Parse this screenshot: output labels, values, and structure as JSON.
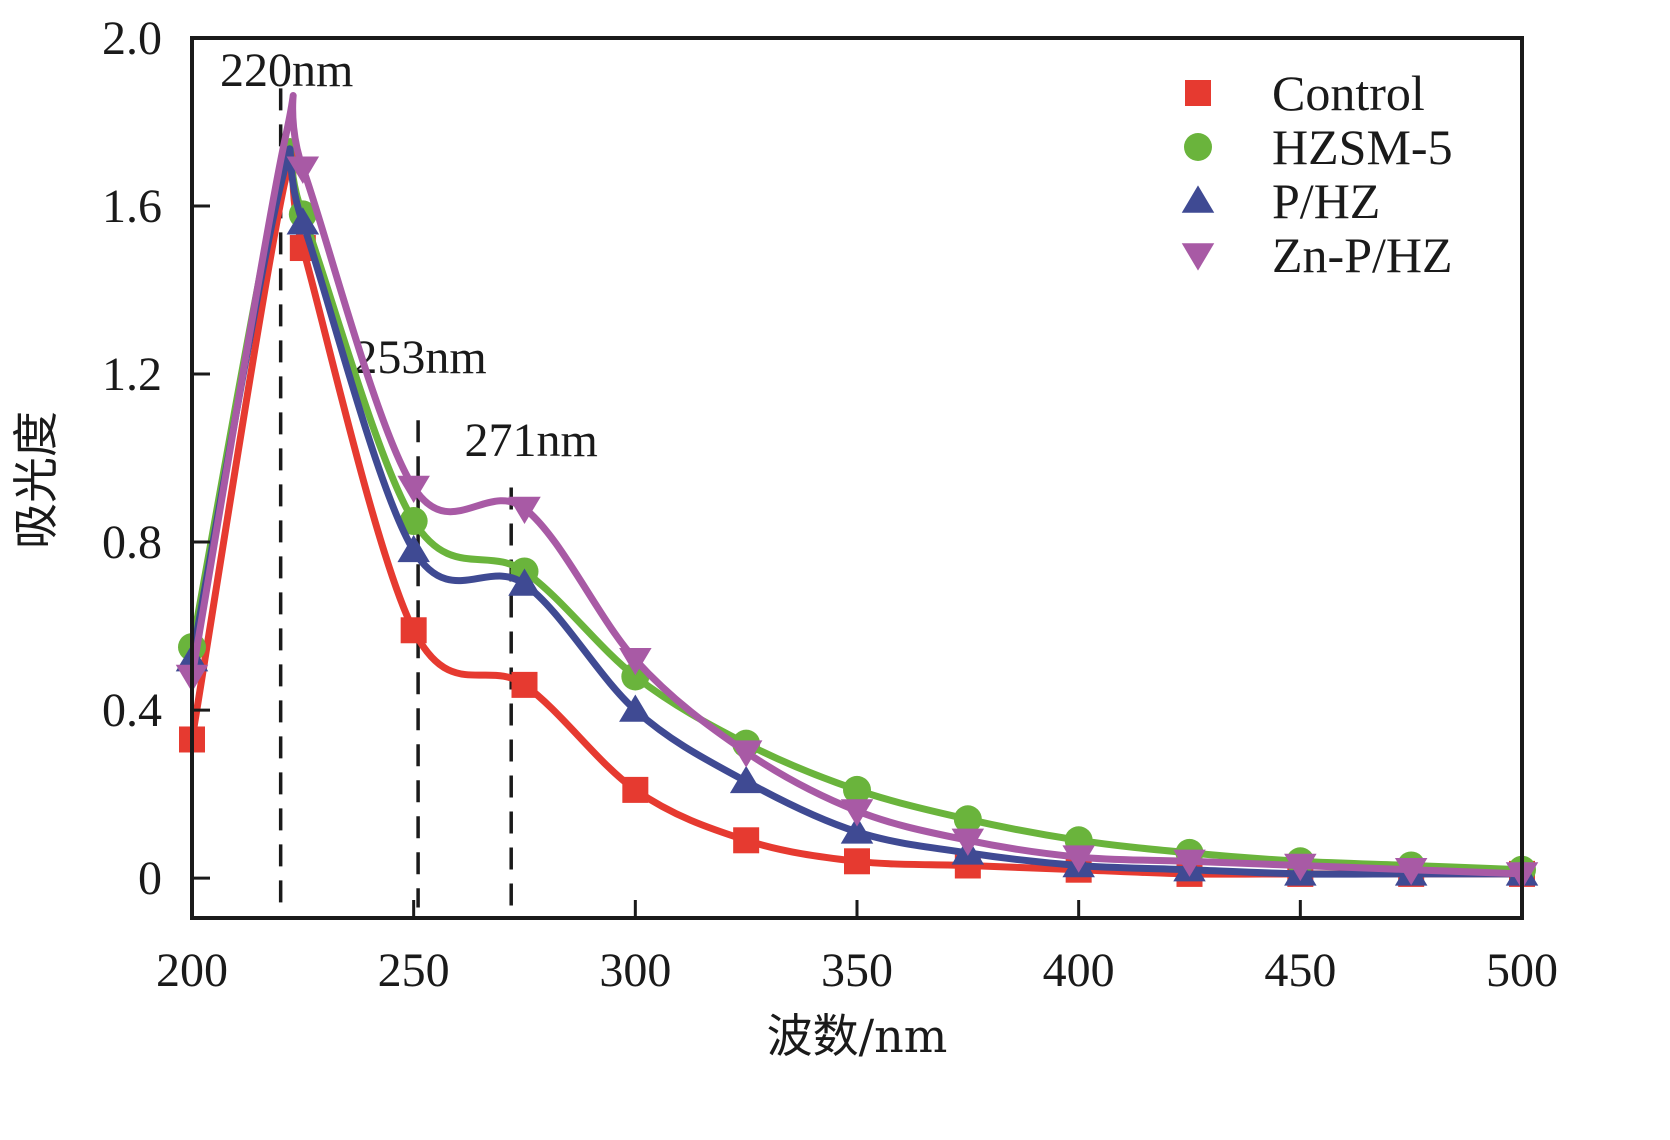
{
  "chart_data": {
    "type": "line",
    "title": "",
    "xlabel": "波数/nm",
    "ylabel": "吸光度",
    "xlim": [
      200,
      500
    ],
    "ylim": [
      -0.095,
      2.0
    ],
    "xticks": [
      200,
      250,
      300,
      350,
      400,
      450,
      500
    ],
    "xtick_labels": [
      "200",
      "250",
      "300",
      "350",
      "400",
      "450",
      "500"
    ],
    "yticks": [
      0,
      0.4,
      0.8,
      1.2,
      1.6,
      2.0
    ],
    "ytick_labels": [
      "0",
      "0.4",
      "0.8",
      "1.2",
      "1.6",
      "2.0"
    ],
    "grid": false,
    "legend_position": "top-right",
    "x": [
      200,
      225,
      250,
      275,
      300,
      325,
      350,
      375,
      400,
      425,
      450,
      475,
      500
    ],
    "series": [
      {
        "name": "Control",
        "color": "#e63a30",
        "marker": "square",
        "values": [
          0.33,
          1.5,
          0.59,
          0.46,
          0.21,
          0.09,
          0.04,
          0.03,
          0.02,
          0.01,
          0.01,
          0.01,
          0.01
        ],
        "peak": {
          "x": 221,
          "y": 1.66
        }
      },
      {
        "name": "HZSM-5",
        "color": "#6ab43c",
        "marker": "circle",
        "values": [
          0.55,
          1.58,
          0.85,
          0.73,
          0.48,
          0.32,
          0.21,
          0.14,
          0.09,
          0.06,
          0.04,
          0.03,
          0.02
        ],
        "peak": {
          "x": 220,
          "y": 1.67
        }
      },
      {
        "name": "P/HZ",
        "color": "#3f4a93",
        "marker": "triangle-up",
        "values": [
          0.52,
          1.56,
          0.78,
          0.7,
          0.4,
          0.23,
          0.11,
          0.06,
          0.03,
          0.02,
          0.01,
          0.01,
          0.01
        ],
        "peak": {
          "x": 220,
          "y": 1.65
        }
      },
      {
        "name": "Zn-P/HZ",
        "color": "#a85aa5",
        "marker": "triangle-down",
        "values": [
          0.48,
          1.69,
          0.93,
          0.88,
          0.52,
          0.3,
          0.16,
          0.09,
          0.05,
          0.04,
          0.03,
          0.02,
          0.01
        ],
        "peak": {
          "x": 221,
          "y": 1.76
        }
      }
    ],
    "annotations": [
      {
        "label": "220nm",
        "x": 220,
        "line_from": -0.07,
        "line_to": 1.88
      },
      {
        "label": "253nm",
        "x": 251,
        "line_from": -0.07,
        "line_to": 1.09
      },
      {
        "label": "271nm",
        "x": 272,
        "line_from": -0.07,
        "line_to": 0.93
      }
    ]
  }
}
